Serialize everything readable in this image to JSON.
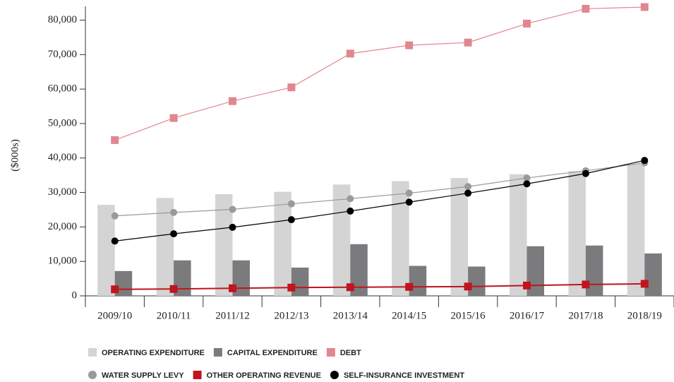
{
  "chart_data": {
    "type": "bar_line",
    "y_axis_label": "($000s)",
    "categories": [
      "2009/10",
      "2010/11",
      "2011/12",
      "2012/13",
      "2013/14",
      "2014/15",
      "2015/16",
      "2016/17",
      "2017/18",
      "2018/19"
    ],
    "ylim": [
      0,
      84000
    ],
    "yticks": [
      0,
      {
        "value": 10000,
        "label": "10,000"
      },
      {
        "value": 20000,
        "label": "20,000"
      },
      {
        "value": 30000,
        "label": "30,000"
      },
      {
        "value": 40000,
        "label": "40,000"
      },
      {
        "value": 50000,
        "label": "50,000"
      },
      {
        "value": 60000,
        "label": "60,000"
      },
      {
        "value": 70000,
        "label": "70,000"
      },
      {
        "value": 80000,
        "label": "80,000"
      }
    ],
    "series": [
      {
        "name": "OPERATING EXPENDITURE",
        "kind": "bar",
        "color": "#d4d4d5",
        "values": [
          26400,
          28400,
          29500,
          30200,
          32300,
          33300,
          34200,
          35300,
          36200,
          38200
        ]
      },
      {
        "name": "CAPITAL EXPENDITURE",
        "kind": "bar",
        "color": "#7b7b7d",
        "values": [
          7200,
          10300,
          10300,
          8200,
          15000,
          8700,
          8500,
          14400,
          14600,
          12300
        ]
      },
      {
        "name": "DEBT",
        "kind": "line",
        "marker": "square",
        "color": "#e0878f",
        "values": [
          45200,
          51600,
          56500,
          60500,
          70300,
          72700,
          73500,
          79000,
          83300,
          83800
        ]
      },
      {
        "name": "WATER SUPPLY LEVY",
        "kind": "line",
        "marker": "circle",
        "color": "#9a9a9b",
        "values": [
          23200,
          24200,
          25100,
          26700,
          28200,
          29800,
          31700,
          34200,
          36300,
          38600
        ]
      },
      {
        "name": "OTHER OPERATING REVENUE",
        "kind": "line",
        "marker": "square",
        "color": "#c1141d",
        "values": [
          1900,
          2000,
          2200,
          2400,
          2500,
          2600,
          2700,
          3000,
          3300,
          3500
        ]
      },
      {
        "name": "SELF-INSURANCE INVESTMENT",
        "kind": "line",
        "marker": "circle",
        "color": "#000000",
        "values": [
          15900,
          18000,
          19900,
          22100,
          24600,
          27200,
          29800,
          32500,
          35500,
          39300
        ]
      }
    ]
  }
}
